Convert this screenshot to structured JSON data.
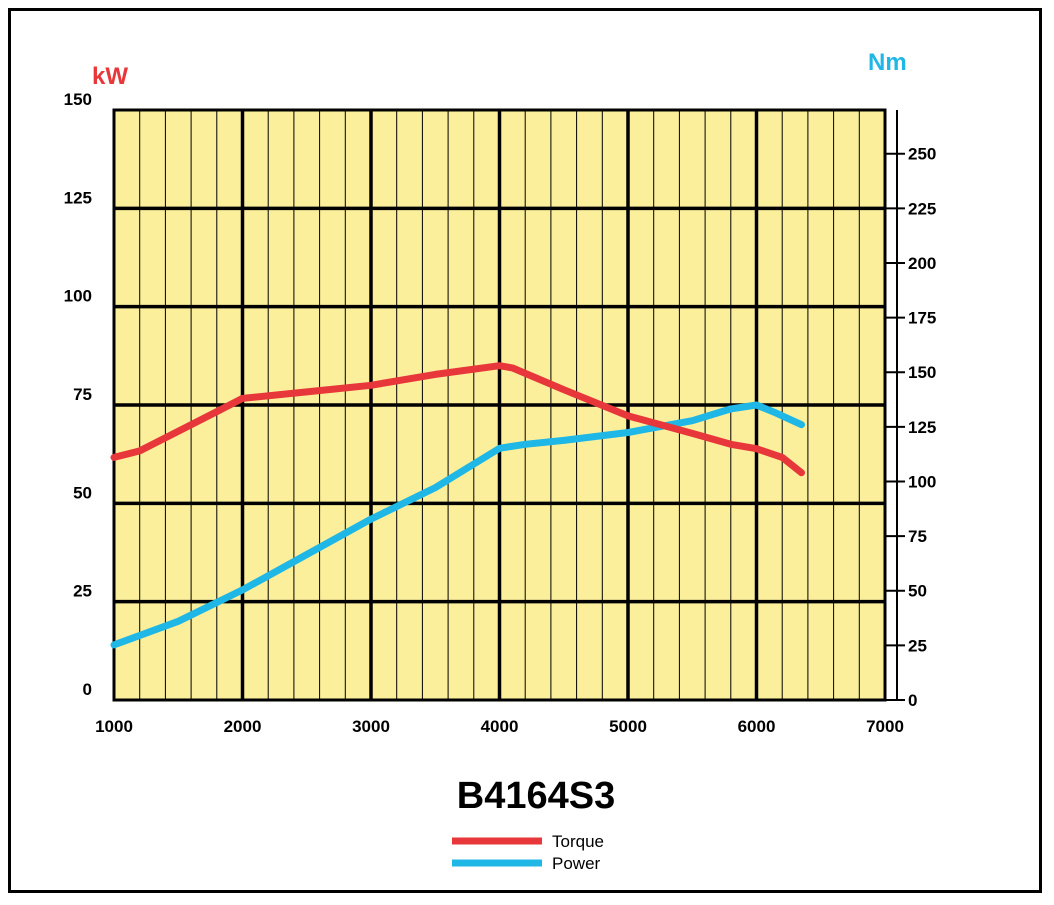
{
  "chart_data": {
    "type": "line",
    "title": "B4164S3",
    "x_ticks": [
      "1000",
      "2000",
      "3000",
      "4000",
      "5000",
      "6000",
      "7000"
    ],
    "xlim": [
      1000,
      7000
    ],
    "left_axis": {
      "label": "kW",
      "color": "#e8373a",
      "ylim": [
        0,
        150
      ],
      "ticks": [
        "0",
        "25",
        "50",
        "75",
        "100",
        "125",
        "150"
      ]
    },
    "right_axis": {
      "label": "Nm",
      "color": "#1fb7e6",
      "ylim": [
        0,
        270
      ],
      "ticks": [
        "0",
        "25",
        "50",
        "75",
        "100",
        "125",
        "150",
        "175",
        "200",
        "225",
        "250"
      ]
    },
    "grid": true,
    "background_color": "#fbef9c",
    "legend_position": "bottom-center",
    "series": [
      {
        "name": "Torque",
        "color": "#e8373a",
        "axis": "right",
        "x": [
          1000,
          1200,
          1500,
          1800,
          2000,
          2500,
          3000,
          3500,
          4000,
          4100,
          4500,
          5000,
          5500,
          5800,
          6000,
          6200,
          6350
        ],
        "values": [
          111,
          114,
          123,
          132,
          138,
          141,
          144,
          149,
          153,
          152,
          142,
          130,
          122,
          117,
          115,
          111,
          104
        ]
      },
      {
        "name": "Power",
        "color": "#1fb7e6",
        "axis": "left",
        "x": [
          1000,
          1500,
          2000,
          2500,
          3000,
          3500,
          4000,
          4200,
          4500,
          5000,
          5500,
          5800,
          6000,
          6150,
          6350
        ],
        "values": [
          14,
          20,
          28,
          37,
          46,
          54,
          64,
          65,
          66,
          68,
          71,
          74,
          75,
          73,
          70
        ]
      }
    ]
  }
}
